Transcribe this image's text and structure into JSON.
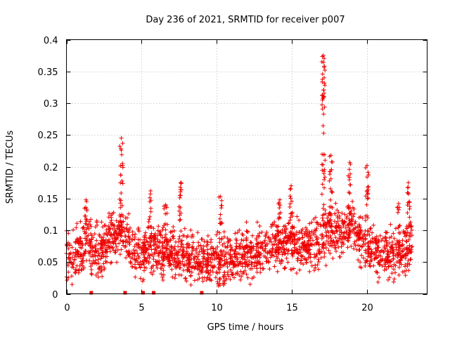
{
  "chart_data": {
    "type": "scatter",
    "title": "Day 236 of 2021, SRMTID for receiver p007",
    "xlabel": "GPS time / hours",
    "ylabel": "SRMTID / TECUs",
    "xlim": [
      0,
      24
    ],
    "ylim": [
      0,
      0.4
    ],
    "x_ticks": [
      0,
      5,
      10,
      15,
      20
    ],
    "x_tick_labels": [
      "0",
      "5",
      "10",
      "15",
      "20"
    ],
    "y_ticks": [
      0,
      0.05,
      0.1,
      0.15,
      0.2,
      0.25,
      0.3,
      0.35,
      0.4
    ],
    "y_tick_labels": [
      "0",
      "0.05",
      "0.1",
      "0.15",
      "0.2",
      "0.25",
      "0.3",
      "0.35",
      "0.4"
    ],
    "grid": true,
    "marker": "+",
    "color": "#ee0000",
    "data_range_hours": [
      0,
      23
    ],
    "zero_markers_x": [
      1.65,
      3.9,
      5.1,
      5.8,
      9.0
    ],
    "baseline_profile": [
      {
        "x": 0.0,
        "y": 0.055
      },
      {
        "x": 0.5,
        "y": 0.06
      },
      {
        "x": 1.0,
        "y": 0.07
      },
      {
        "x": 1.4,
        "y": 0.09
      },
      {
        "x": 1.8,
        "y": 0.065
      },
      {
        "x": 2.5,
        "y": 0.075
      },
      {
        "x": 3.2,
        "y": 0.09
      },
      {
        "x": 3.7,
        "y": 0.1
      },
      {
        "x": 4.3,
        "y": 0.07
      },
      {
        "x": 5.0,
        "y": 0.06
      },
      {
        "x": 5.5,
        "y": 0.075
      },
      {
        "x": 6.2,
        "y": 0.065
      },
      {
        "x": 7.0,
        "y": 0.07
      },
      {
        "x": 8.0,
        "y": 0.06
      },
      {
        "x": 9.0,
        "y": 0.05
      },
      {
        "x": 10.0,
        "y": 0.05
      },
      {
        "x": 11.0,
        "y": 0.055
      },
      {
        "x": 12.0,
        "y": 0.06
      },
      {
        "x": 13.0,
        "y": 0.065
      },
      {
        "x": 14.0,
        "y": 0.075
      },
      {
        "x": 14.8,
        "y": 0.085
      },
      {
        "x": 15.5,
        "y": 0.075
      },
      {
        "x": 16.5,
        "y": 0.07
      },
      {
        "x": 17.2,
        "y": 0.1
      },
      {
        "x": 18.0,
        "y": 0.095
      },
      {
        "x": 18.8,
        "y": 0.11
      },
      {
        "x": 19.5,
        "y": 0.085
      },
      {
        "x": 20.5,
        "y": 0.07
      },
      {
        "x": 21.5,
        "y": 0.055
      },
      {
        "x": 22.3,
        "y": 0.065
      },
      {
        "x": 23.0,
        "y": 0.08
      }
    ],
    "spikes": [
      {
        "x": 1.3,
        "peak": 0.148
      },
      {
        "x": 3.65,
        "peak": 0.245
      },
      {
        "x": 5.6,
        "peak": 0.162
      },
      {
        "x": 6.6,
        "peak": 0.14
      },
      {
        "x": 7.6,
        "peak": 0.175
      },
      {
        "x": 10.25,
        "peak": 0.153
      },
      {
        "x": 14.2,
        "peak": 0.148
      },
      {
        "x": 14.95,
        "peak": 0.17
      },
      {
        "x": 17.1,
        "peak": 0.375
      },
      {
        "x": 17.6,
        "peak": 0.218
      },
      {
        "x": 18.85,
        "peak": 0.207
      },
      {
        "x": 20.0,
        "peak": 0.202
      },
      {
        "x": 22.1,
        "peak": 0.142
      },
      {
        "x": 22.75,
        "peak": 0.175
      }
    ]
  }
}
